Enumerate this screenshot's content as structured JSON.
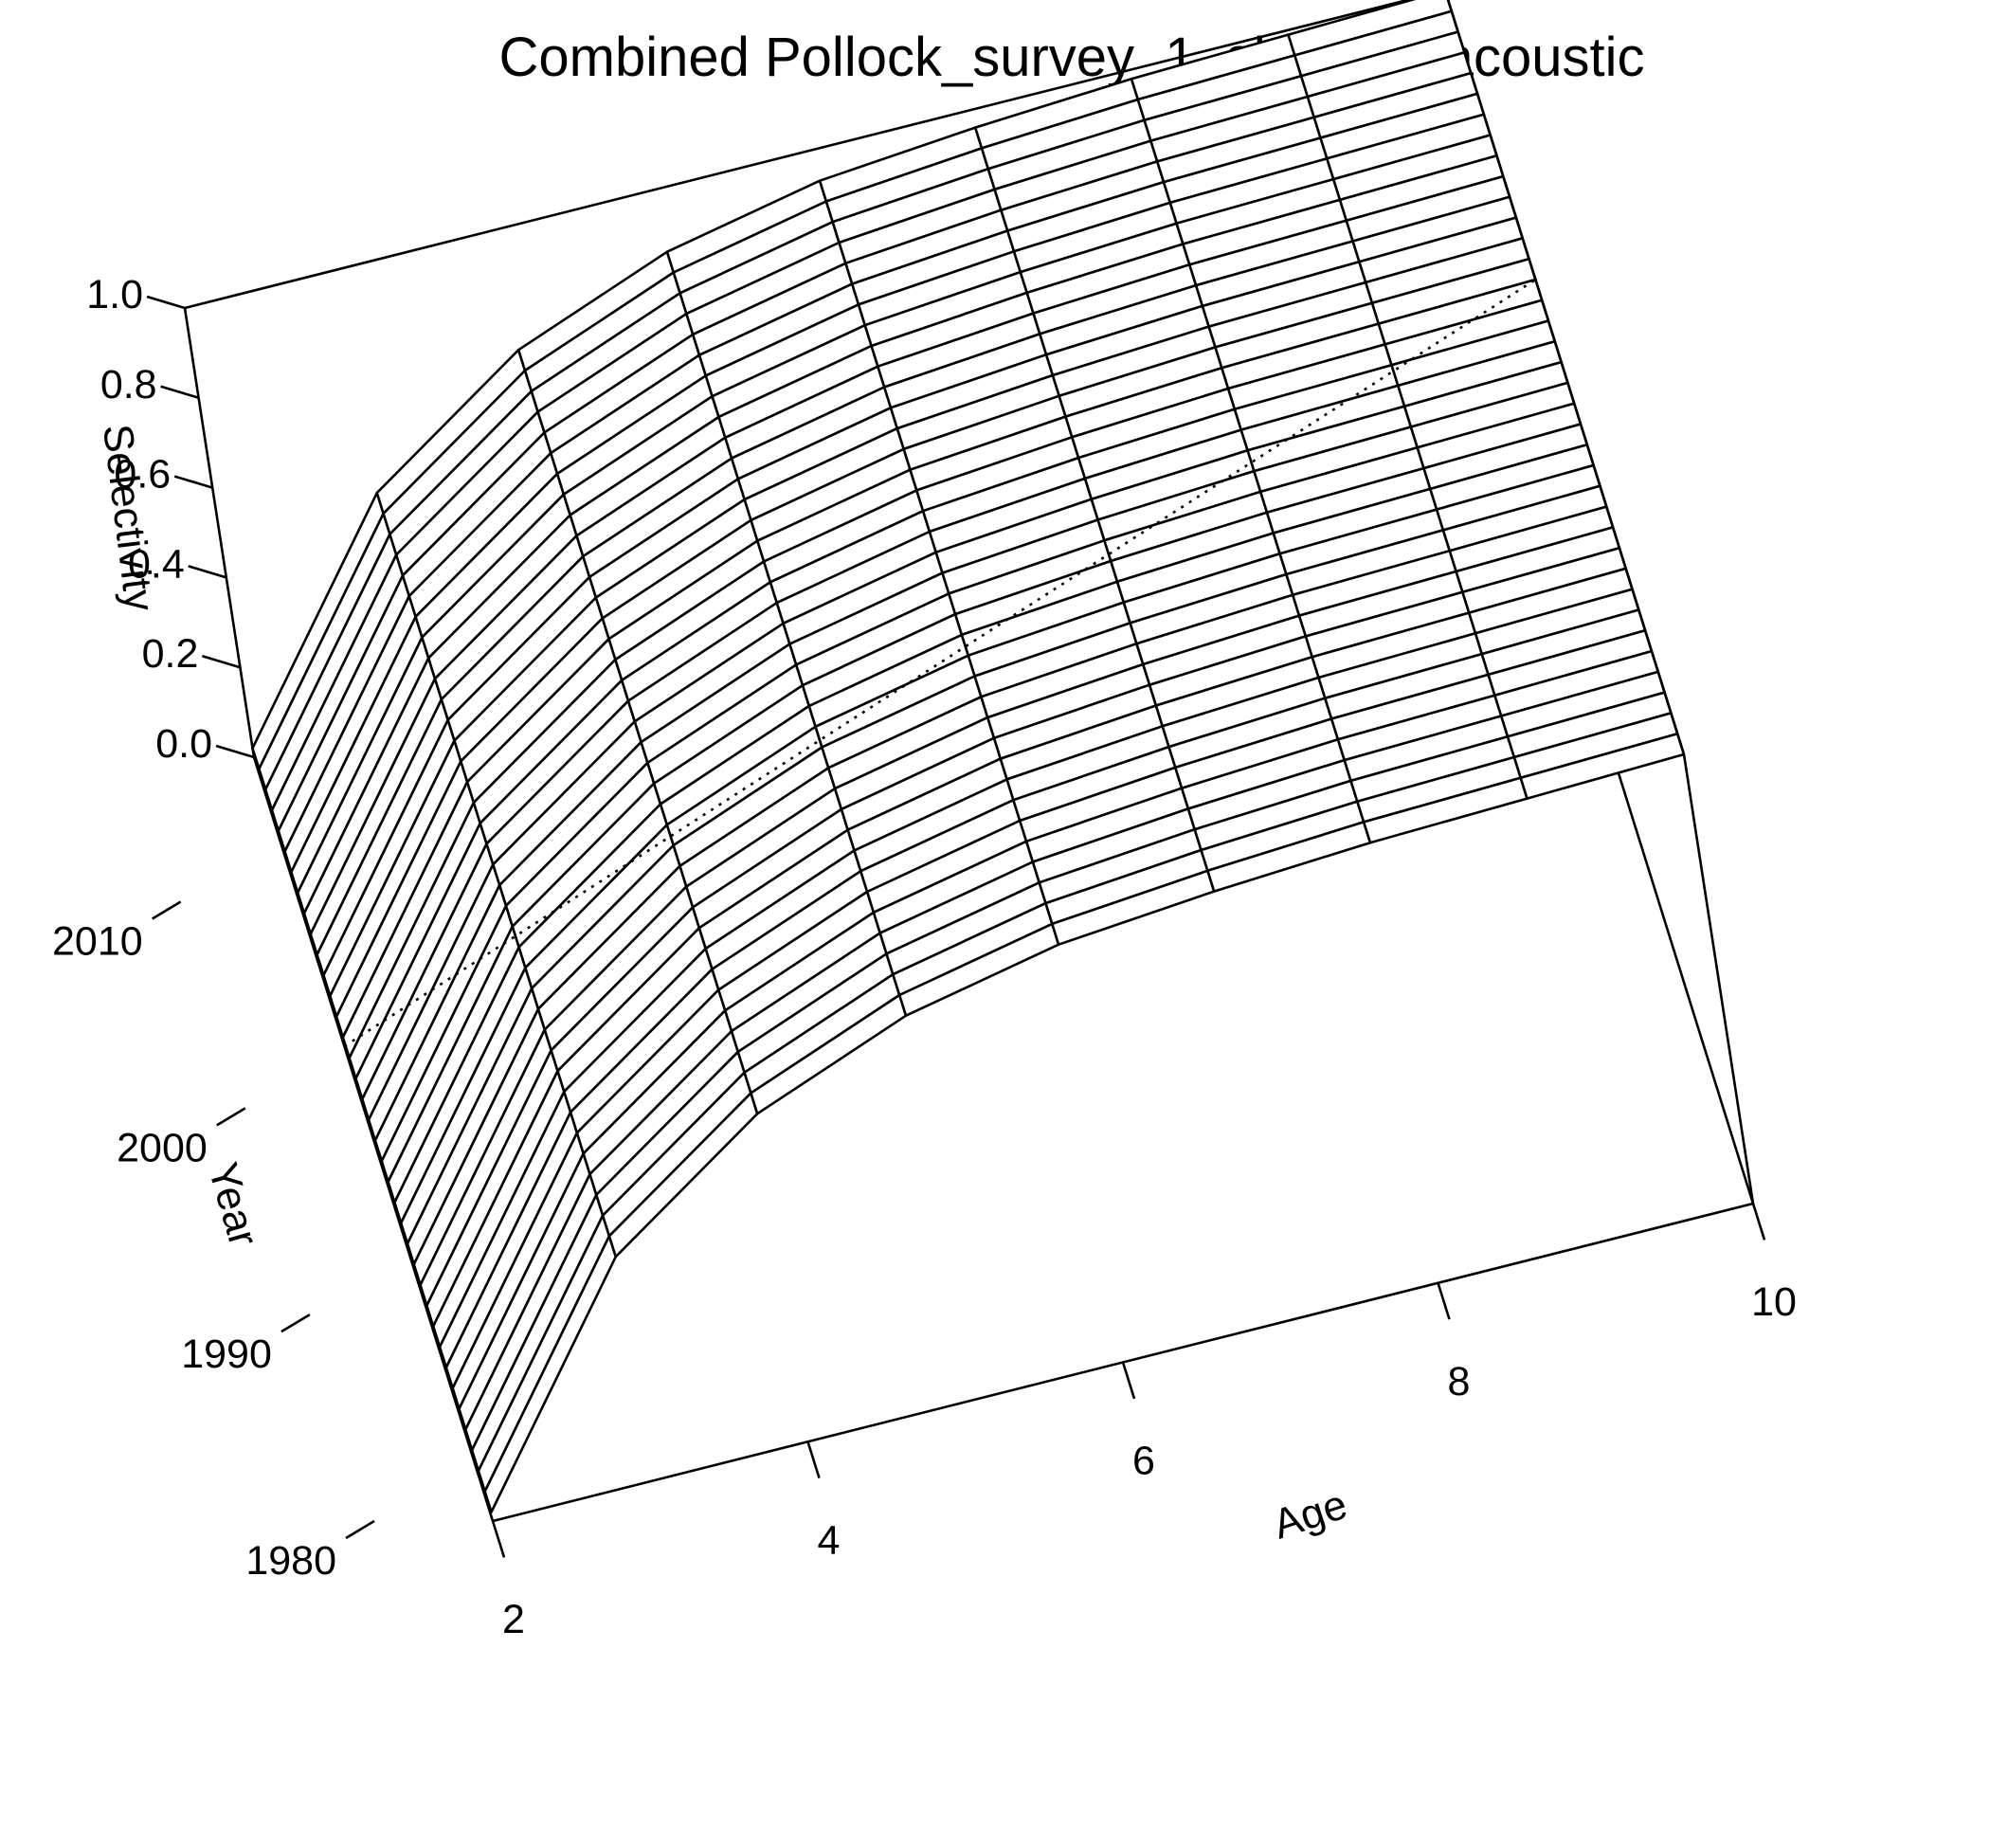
{
  "chart_data": {
    "type": "surface3d",
    "title": "Combined Pollock_survey_1_shelikof_acoustic",
    "xlabel": "Age",
    "ylabel": "Year",
    "zlabel": "Selectivity",
    "x_ticks": [
      "2",
      "4",
      "6",
      "8",
      "10"
    ],
    "y_ticks": [
      "1980",
      "1990",
      "2000",
      "2010"
    ],
    "z_ticks": [
      "0.0",
      "0.2",
      "0.4",
      "0.6",
      "0.8",
      "1.0"
    ],
    "xlim": [
      2,
      10
    ],
    "ylim": [
      1980,
      2017
    ],
    "zlim": [
      0,
      1
    ],
    "ages": [
      2,
      3,
      4,
      5,
      6,
      7,
      8,
      9,
      10
    ],
    "year_start": 1980,
    "year_end": 2017,
    "selectivity_by_age": [
      0.02,
      0.5,
      0.73,
      0.86,
      0.93,
      0.96,
      0.98,
      0.99,
      1.0
    ],
    "dotted_year": 2003
  }
}
